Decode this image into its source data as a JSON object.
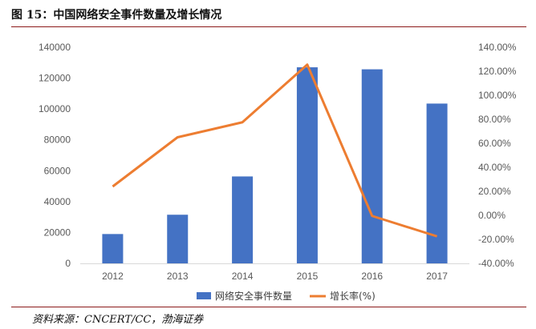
{
  "figure": {
    "title": "图 15：中国网络安全事件数量及增长情况",
    "source": "资料来源：CNCERT/CC，渤海证券"
  },
  "chart_data": {
    "type": "bar",
    "categories": [
      "2012",
      "2013",
      "2014",
      "2015",
      "2016",
      "2017"
    ],
    "series": [
      {
        "name": "网络安全事件数量",
        "type": "bar",
        "axis": "left",
        "color": "#4472c4",
        "values": [
          19000,
          31500,
          56300,
          127000,
          125700,
          103500
        ]
      },
      {
        "name": "增长率(%)",
        "type": "line",
        "axis": "right",
        "color": "#ed7d31",
        "values": [
          24.0,
          65.0,
          77.5,
          125.5,
          -0.5,
          -17.5
        ]
      }
    ],
    "y_left": {
      "min": 0,
      "max": 140000,
      "step": 20000,
      "ticks": [
        "0",
        "20000",
        "40000",
        "60000",
        "80000",
        "100000",
        "120000",
        "140000"
      ]
    },
    "y_right": {
      "min": -40,
      "max": 140,
      "step": 20,
      "ticks": [
        "-40.00%",
        "-20.00%",
        "0.00%",
        "20.00%",
        "40.00%",
        "60.00%",
        "80.00%",
        "100.00%",
        "120.00%",
        "140.00%"
      ]
    },
    "legend": {
      "position": "bottom"
    },
    "grid": false
  }
}
